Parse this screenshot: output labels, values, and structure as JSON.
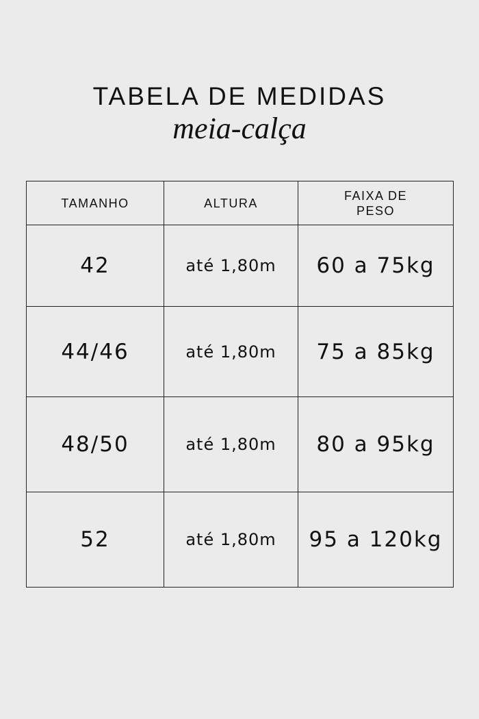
{
  "title": "TABELA DE MEDIDAS",
  "subtitle": "meia-calça",
  "table": {
    "headers": [
      "TAMANHO",
      "ALTURA",
      "FAIXA DE PESO"
    ],
    "rows": [
      {
        "size": "42",
        "height": "até 1,80m",
        "weight": "60 a 75kg"
      },
      {
        "size": "44/46",
        "height": "até 1,80m",
        "weight": "75 a 85kg"
      },
      {
        "size": "48/50",
        "height": "até 1,80m",
        "weight": "80 a 95kg"
      },
      {
        "size": "52",
        "height": "até 1,80m",
        "weight": "95 a 120kg"
      }
    ]
  }
}
